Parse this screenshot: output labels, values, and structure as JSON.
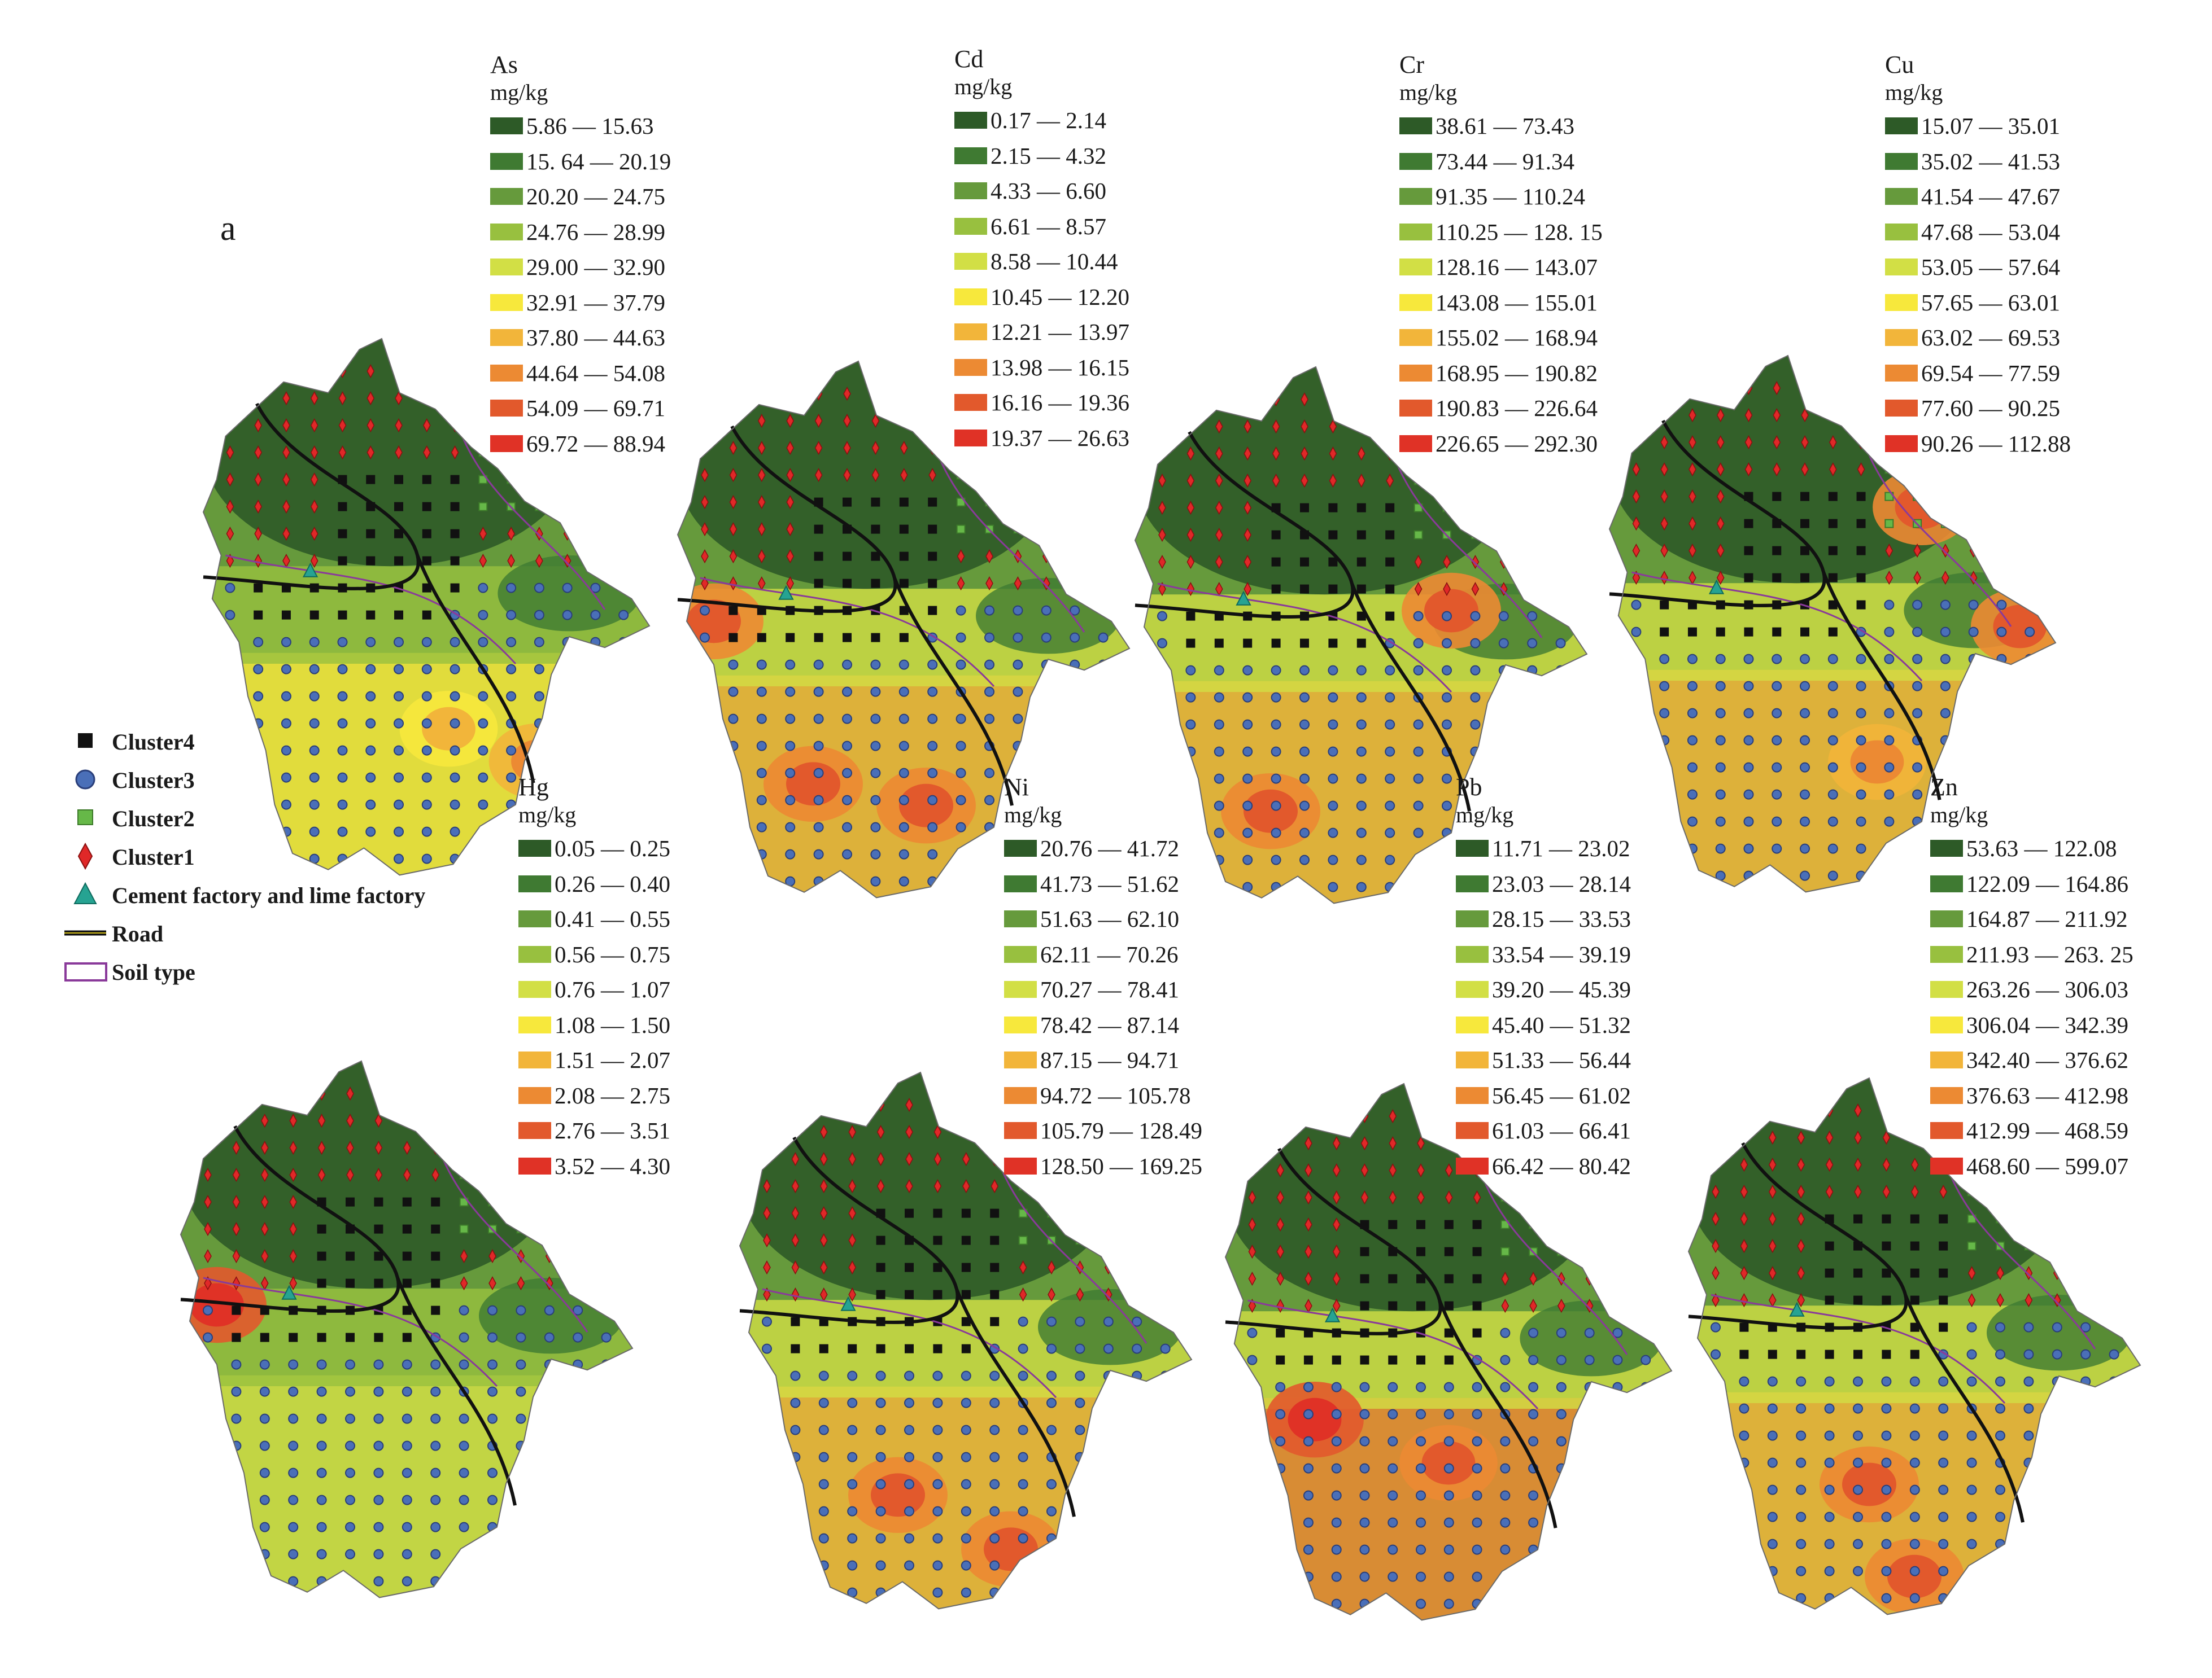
{
  "figure": {
    "panel_label": "a",
    "key": [
      {
        "label": "Cluster4",
        "symbol": "black-square"
      },
      {
        "label": "Cluster3",
        "symbol": "blue-circle"
      },
      {
        "label": "Cluster2",
        "symbol": "green-square"
      },
      {
        "label": "Cluster1",
        "symbol": "red-diamond"
      },
      {
        "label": "Cement factory and lime factory",
        "symbol": "teal-triangle"
      },
      {
        "label": "Road",
        "symbol": "road-line"
      },
      {
        "label": "Soil type",
        "symbol": "soil-polygon"
      }
    ]
  },
  "palette": [
    "#2d5a27",
    "#3f7a32",
    "#669a3c",
    "#98c03f",
    "#d2df45",
    "#f7e83c",
    "#f2b53a",
    "#ec8a33",
    "#e2592c",
    "#e03226"
  ],
  "maps": [
    {
      "element": "As",
      "unit": "mg/kg",
      "pollution": 0.45,
      "hot": [
        [
          0.75,
          0.78,
          0.6
        ],
        [
          0.55,
          0.72,
          0.4
        ]
      ],
      "classes": [
        "5.86 — 15.63",
        "15. 64 — 20.19",
        "20.20 — 24.75",
        "24.76 — 28.99",
        "29.00 — 32.90",
        "32.91 — 37.79",
        "37.80 — 44.63",
        "44.64 — 54.08",
        "54.09 — 69.71",
        "69.72 — 88.94"
      ]
    },
    {
      "element": "Cd",
      "unit": "mg/kg",
      "pollution": 0.5,
      "hot": [
        [
          0.3,
          0.78,
          0.8
        ],
        [
          0.55,
          0.82,
          0.8
        ],
        [
          0.08,
          0.48,
          0.7
        ]
      ],
      "classes": [
        "0.17 — 2.14",
        "2.15 — 4.32",
        "4.33 — 6.60",
        "6.61 — 8.57",
        "8.58 — 10.44",
        "10.45 — 12.20",
        "12.21 — 13.97",
        "13.98 — 16.15",
        "16.16 — 19.36",
        "19.37 — 26.63"
      ]
    },
    {
      "element": "Cr",
      "unit": "mg/kg",
      "pollution": 0.55,
      "hot": [
        [
          0.7,
          0.45,
          0.8
        ],
        [
          0.3,
          0.82,
          0.7
        ]
      ],
      "classes": [
        "38.61 — 73.43",
        "73.44 — 91.34",
        "91.35 — 110.24",
        "110.25 — 128. 15",
        "128.16 — 143.07",
        "143.08 — 155.01",
        "155.02 — 168.94",
        "168.95 — 190.82",
        "190.83 — 226.64",
        "226.65 — 292.30"
      ]
    },
    {
      "element": "Cu",
      "unit": "mg/kg",
      "pollution": 0.5,
      "hot": [
        [
          0.7,
          0.28,
          0.7
        ],
        [
          0.92,
          0.5,
          0.7
        ],
        [
          0.6,
          0.75,
          0.5
        ]
      ],
      "classes": [
        "15.07 — 35.01",
        "35.02 — 41.53",
        "41.54 — 47.67",
        "47.68 — 53.04",
        "53.05 — 57.64",
        "57.65 — 63.01",
        "63.02 — 69.53",
        "69.54 — 77.59",
        "77.60 — 90.25",
        "90.26 — 112.88"
      ]
    },
    {
      "element": "Hg",
      "unit": "mg/kg",
      "pollution": 0.18,
      "hot": [
        [
          0.08,
          0.45,
          0.9
        ]
      ],
      "classes": [
        "0.05 — 0.25",
        "0.26 — 0.40",
        "0.41 — 0.55",
        "0.56 — 0.75",
        "0.76 — 1.07",
        "1.08 — 1.50",
        "1.51 — 2.07",
        "2.08 — 2.75",
        "2.76 — 3.51",
        "3.52 — 4.30"
      ]
    },
    {
      "element": "Ni",
      "unit": "mg/kg",
      "pollution": 0.6,
      "hot": [
        [
          0.35,
          0.78,
          0.7
        ],
        [
          0.6,
          0.88,
          0.8
        ]
      ],
      "classes": [
        "20.76 — 41.72",
        "41.73 — 51.62",
        "51.63 — 62.10",
        "62.11 — 70.26",
        "70.27 — 78.41",
        "78.42 — 87.14",
        "87.15 — 94.71",
        "94.72 — 105.78",
        "105.79 — 128.49",
        "128.50 — 169.25"
      ]
    },
    {
      "element": "Pb",
      "unit": "mg/kg",
      "pollution": 0.75,
      "hot": [
        [
          0.2,
          0.62,
          1.0
        ],
        [
          0.5,
          0.7,
          0.7
        ]
      ],
      "classes": [
        "11.71 — 23.02",
        "23.03 — 28.14",
        "28.15 — 33.53",
        "33.54 — 39.19",
        "39.20 — 45.39",
        "45.40 — 51.32",
        "51.33 — 56.44",
        "56.45 — 61.02",
        "61.03 — 66.41",
        "66.42 — 80.42"
      ]
    },
    {
      "element": "Zn",
      "unit": "mg/kg",
      "pollution": 0.55,
      "hot": [
        [
          0.4,
          0.75,
          0.7
        ],
        [
          0.5,
          0.92,
          0.8
        ]
      ],
      "classes": [
        "53.63 — 122.08",
        "122.09 — 164.86",
        "164.87 — 211.92",
        "211.93 — 263. 25",
        "263.26 — 306.03",
        "306.04 — 342.39",
        "342.40 — 376.62",
        "376.63 — 412.98",
        "412.99 — 468.59",
        "468.60 — 599.07"
      ]
    }
  ]
}
